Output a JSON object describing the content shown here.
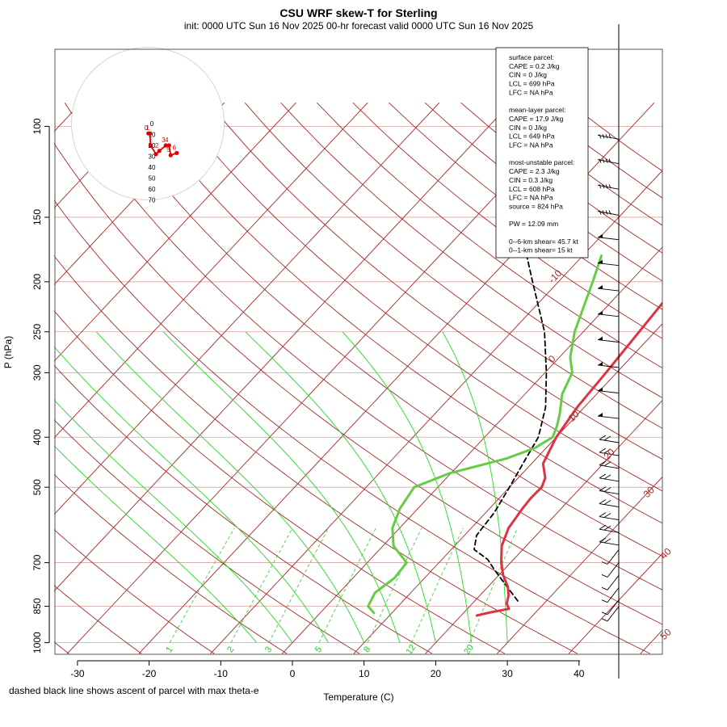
{
  "title": "CSU WRF skew-T for Sterling",
  "subtitle": "init: 0000 UTC Sun 16 Nov 2025     00-hr forecast valid 0000 UTC Sun 16 Nov 2025",
  "footnote": "dashed black line shows ascent of parcel with max theta-e",
  "colors": {
    "temperature": "#dd3344",
    "dewpoint": "#66cc44",
    "isotherm": "#a52a2a",
    "mixing_ratio": "#22cc22",
    "grid": "#cccccc",
    "parcel": "#000000"
  },
  "chart_data": {
    "type": "skew-t",
    "xlabel": "Temperature (C)",
    "ylabel": "P (hPa)",
    "x_ticks": [
      -30,
      -20,
      -10,
      0,
      10,
      20,
      30,
      40
    ],
    "xlim": [
      -33,
      46
    ],
    "y_ticks": [
      100,
      150,
      200,
      250,
      300,
      400,
      500,
      700,
      850,
      1000
    ],
    "ylim": [
      1000,
      100
    ],
    "y_scale": "log",
    "isotherm_labels": [
      -10,
      0,
      10,
      20,
      30,
      40,
      50
    ],
    "mixing_ratio_labels": [
      1,
      2,
      3,
      5,
      8,
      12,
      20
    ],
    "temperature_profile": [
      {
        "p": 886,
        "t": 22.2
      },
      {
        "p": 875,
        "t": 23.5
      },
      {
        "p": 860,
        "t": 25.8
      },
      {
        "p": 840,
        "t": 24.8
      },
      {
        "p": 810,
        "t": 24.0
      },
      {
        "p": 780,
        "t": 22.8
      },
      {
        "p": 740,
        "t": 20.6
      },
      {
        "p": 700,
        "t": 18.7
      },
      {
        "p": 650,
        "t": 16.6
      },
      {
        "p": 600,
        "t": 15.2
      },
      {
        "p": 550,
        "t": 14.6
      },
      {
        "p": 525,
        "t": 14.4
      },
      {
        "p": 500,
        "t": 14.5
      },
      {
        "p": 480,
        "t": 13.8
      },
      {
        "p": 450,
        "t": 11.6
      },
      {
        "p": 400,
        "t": 10.0
      },
      {
        "p": 350,
        "t": 9.0
      },
      {
        "p": 300,
        "t": 8.5
      },
      {
        "p": 250,
        "t": 7.8
      },
      {
        "p": 220,
        "t": 7.3
      },
      {
        "p": 200,
        "t": 7.5
      },
      {
        "p": 185,
        "t": 8.5
      },
      {
        "p": 170,
        "t": 10.5
      },
      {
        "p": 150,
        "t": 14.3
      },
      {
        "p": 130,
        "t": 18.4
      },
      {
        "p": 110,
        "t": 23.3
      }
    ],
    "dewpoint_profile": [
      {
        "p": 876,
        "t": 7.5
      },
      {
        "p": 850,
        "t": 5.8
      },
      {
        "p": 800,
        "t": 5.0
      },
      {
        "p": 750,
        "t": 5.8
      },
      {
        "p": 700,
        "t": 5.5
      },
      {
        "p": 650,
        "t": 1.5
      },
      {
        "p": 600,
        "t": -1.0
      },
      {
        "p": 550,
        "t": -2.5
      },
      {
        "p": 500,
        "t": -3.3
      },
      {
        "p": 470,
        "t": -0.2
      },
      {
        "p": 440,
        "t": 5.8
      },
      {
        "p": 420,
        "t": 8.4
      },
      {
        "p": 400,
        "t": 9.5
      },
      {
        "p": 380,
        "t": 8.6
      },
      {
        "p": 360,
        "t": 7.4
      },
      {
        "p": 330,
        "t": 5.2
      },
      {
        "p": 300,
        "t": 3.8
      },
      {
        "p": 280,
        "t": 1.5
      },
      {
        "p": 250,
        "t": -1.2
      },
      {
        "p": 220,
        "t": -3.5
      },
      {
        "p": 200,
        "t": -5.2
      },
      {
        "p": 178,
        "t": -7.4
      }
    ],
    "parcel_profile": [
      {
        "p": 830,
        "t": 26.0
      },
      {
        "p": 780,
        "t": 22.7
      },
      {
        "p": 720,
        "t": 18.5
      },
      {
        "p": 690,
        "t": 16.4
      },
      {
        "p": 660,
        "t": 13.2
      },
      {
        "p": 620,
        "t": 11.7
      },
      {
        "p": 560,
        "t": 11.2
      },
      {
        "p": 500,
        "t": 10.0
      },
      {
        "p": 450,
        "t": 8.8
      },
      {
        "p": 400,
        "t": 7.5
      },
      {
        "p": 350,
        "t": 4.6
      },
      {
        "p": 300,
        "t": 0.2
      },
      {
        "p": 250,
        "t": -5.4
      },
      {
        "p": 200,
        "t": -13.6
      },
      {
        "p": 170,
        "t": -19.5
      },
      {
        "p": 150,
        "t": -23.0
      },
      {
        "p": 130,
        "t": -27.5
      },
      {
        "p": 115,
        "t": -31.0
      },
      {
        "p": 107,
        "t": -33.0
      }
    ],
    "hodograph": {
      "ring_labels": [
        0,
        10,
        20,
        30,
        40,
        50,
        60,
        70
      ],
      "points": [
        {
          "label": "0",
          "u": 0.5,
          "v": 9
        },
        {
          "label": "1",
          "u": 2.0,
          "v": 9
        },
        {
          "label": "",
          "u": 2.5,
          "v": 20
        },
        {
          "label": "",
          "u": 7.5,
          "v": 28
        },
        {
          "label": "2",
          "u": 10.5,
          "v": 25
        },
        {
          "label": "3",
          "u": 16.5,
          "v": 20
        },
        {
          "label": "4",
          "u": 19.5,
          "v": 20
        },
        {
          "label": "5",
          "u": 21.0,
          "v": 29
        },
        {
          "label": "6",
          "u": 26.5,
          "v": 27
        }
      ]
    },
    "wind_barbs": [
      {
        "p": 104,
        "type": "ff"
      },
      {
        "p": 116,
        "type": "ff"
      },
      {
        "p": 130,
        "type": "ff"
      },
      {
        "p": 146,
        "type": "ff"
      },
      {
        "p": 164,
        "type": "p"
      },
      {
        "p": 184,
        "type": "p"
      },
      {
        "p": 206,
        "type": "p"
      },
      {
        "p": 231,
        "type": "p"
      },
      {
        "p": 259,
        "type": "p"
      },
      {
        "p": 290,
        "type": "p"
      },
      {
        "p": 325,
        "type": "p"
      },
      {
        "p": 364,
        "type": "p"
      },
      {
        "p": 404,
        "type": "f"
      },
      {
        "p": 428,
        "type": "f"
      },
      {
        "p": 453,
        "type": "f"
      },
      {
        "p": 480,
        "type": "f"
      },
      {
        "p": 508,
        "type": "f"
      },
      {
        "p": 538,
        "type": "f"
      },
      {
        "p": 570,
        "type": "f"
      },
      {
        "p": 603,
        "type": "f"
      },
      {
        "p": 638,
        "type": "f"
      },
      {
        "p": 675,
        "type": "s"
      },
      {
        "p": 715,
        "type": "s"
      },
      {
        "p": 757,
        "type": "s"
      },
      {
        "p": 800,
        "type": "s"
      },
      {
        "p": 845,
        "type": "s"
      },
      {
        "p": 870,
        "type": "s"
      }
    ]
  },
  "info_box": {
    "lines": [
      "surface parcel:",
      "CAPE = 0.2 J/kg",
      "CIN = 0 J/kg",
      "LCL = 699 hPa",
      "LFC = NA hPa",
      "",
      "mean-layer parcel:",
      "CAPE = 17.9 J/kg",
      "CIN = 0 J/kg",
      "LCL = 649 hPa",
      "LFC = NA hPa",
      "",
      "most-unstable parcel:",
      "CAPE = 2.3 J/kg",
      "CIN = 0.3 J/kg",
      "LCL = 608 hPa",
      "LFC = NA hPa",
      "source = 824 hPa",
      "",
      "PW =  12.09 mm",
      "",
      "0--6-km shear= 45.7 kt",
      "0--1-km shear= 15 kt"
    ]
  }
}
